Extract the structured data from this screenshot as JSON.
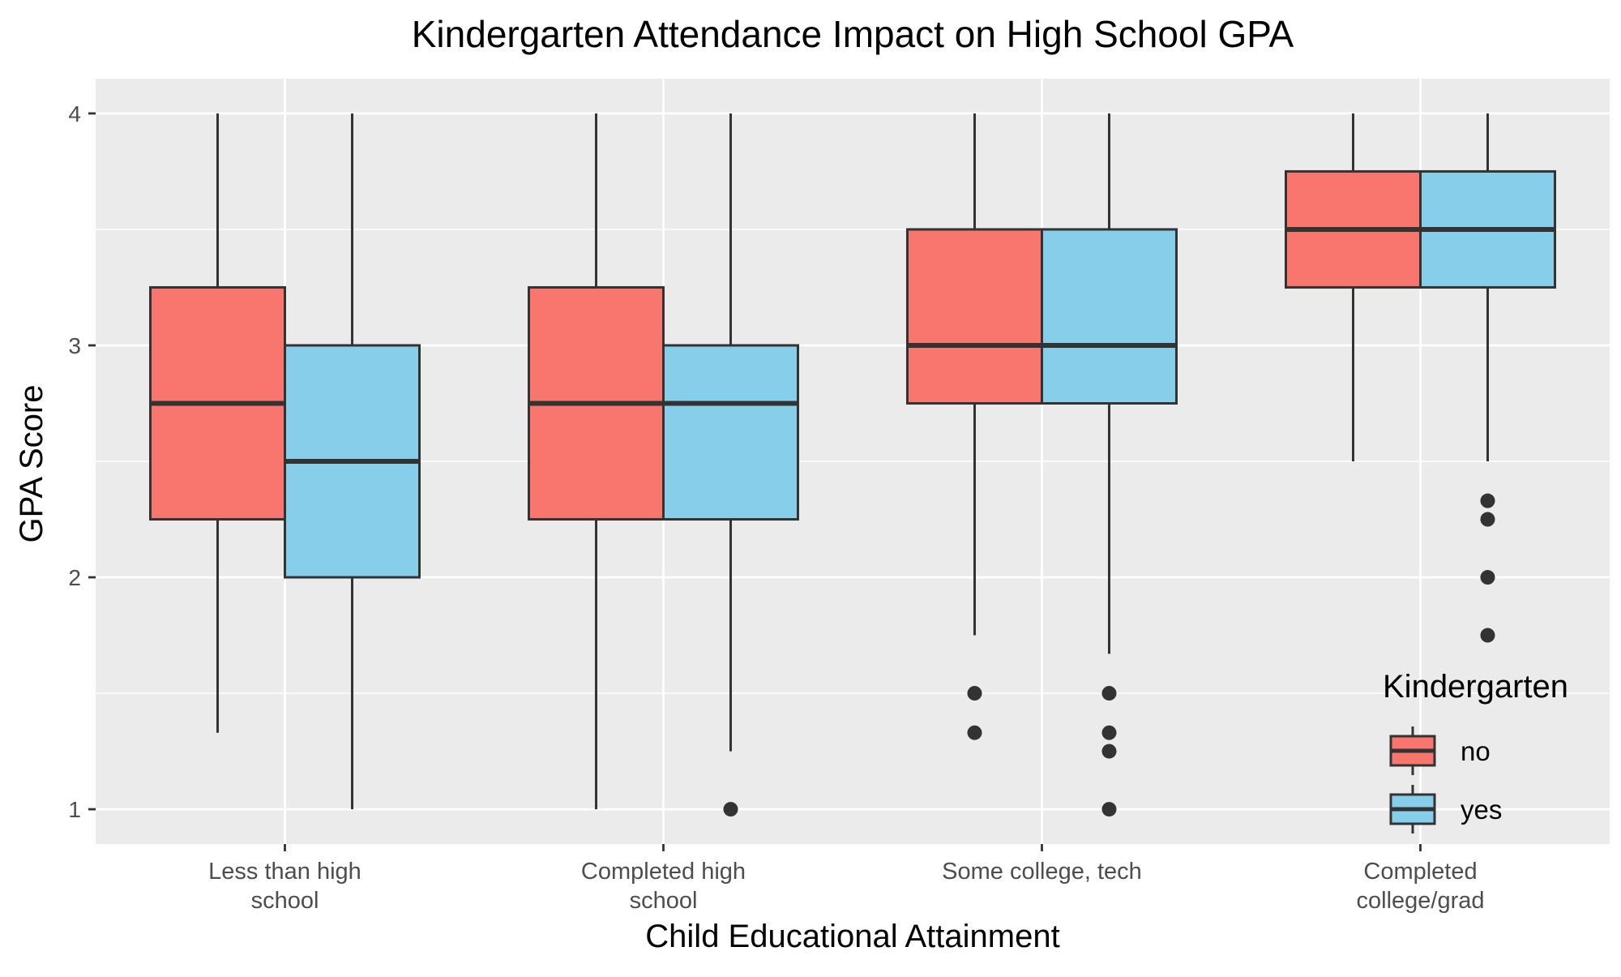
{
  "chart_data": {
    "type": "box",
    "title": "Kindergarten Attendance Impact on High School GPA",
    "xlabel": "Child Educational Attainment",
    "ylabel": "GPA Score",
    "ylim": [
      0.85,
      4.15
    ],
    "yticks": [
      1,
      2,
      3,
      4
    ],
    "grid": true,
    "categories": [
      [
        "Less than high",
        "school"
      ],
      [
        "Completed high",
        "school"
      ],
      [
        "Some college, tech"
      ],
      [
        "Completed",
        "college/grad"
      ]
    ],
    "legend": {
      "title": "Kindergarten",
      "placement": "bottom-right, inside plot"
    },
    "series": [
      {
        "name": "no",
        "color": "#F8766D",
        "boxes": [
          {
            "min": 1.33,
            "q1": 2.25,
            "median": 2.75,
            "q3": 3.25,
            "max": 4.0,
            "outliers": []
          },
          {
            "min": 1.0,
            "q1": 2.25,
            "median": 2.75,
            "q3": 3.25,
            "max": 4.0,
            "outliers": []
          },
          {
            "min": 1.75,
            "q1": 2.75,
            "median": 3.0,
            "q3": 3.5,
            "max": 4.0,
            "outliers": [
              1.5,
              1.33
            ]
          },
          {
            "min": 2.5,
            "q1": 3.25,
            "median": 3.5,
            "q3": 3.75,
            "max": 4.0,
            "outliers": []
          }
        ]
      },
      {
        "name": "yes",
        "color": "#87CEEB",
        "boxes": [
          {
            "min": 1.0,
            "q1": 2.0,
            "median": 2.5,
            "q3": 3.0,
            "max": 4.0,
            "outliers": []
          },
          {
            "min": 1.25,
            "q1": 2.25,
            "median": 2.75,
            "q3": 3.0,
            "max": 4.0,
            "outliers": [
              1.0
            ]
          },
          {
            "min": 1.67,
            "q1": 2.75,
            "median": 3.0,
            "q3": 3.5,
            "max": 4.0,
            "outliers": [
              1.5,
              1.33,
              1.25,
              1.0
            ]
          },
          {
            "min": 2.5,
            "q1": 3.25,
            "median": 3.5,
            "q3": 3.75,
            "max": 4.0,
            "outliers": [
              2.33,
              2.25,
              2.0,
              1.75
            ]
          }
        ]
      }
    ]
  }
}
